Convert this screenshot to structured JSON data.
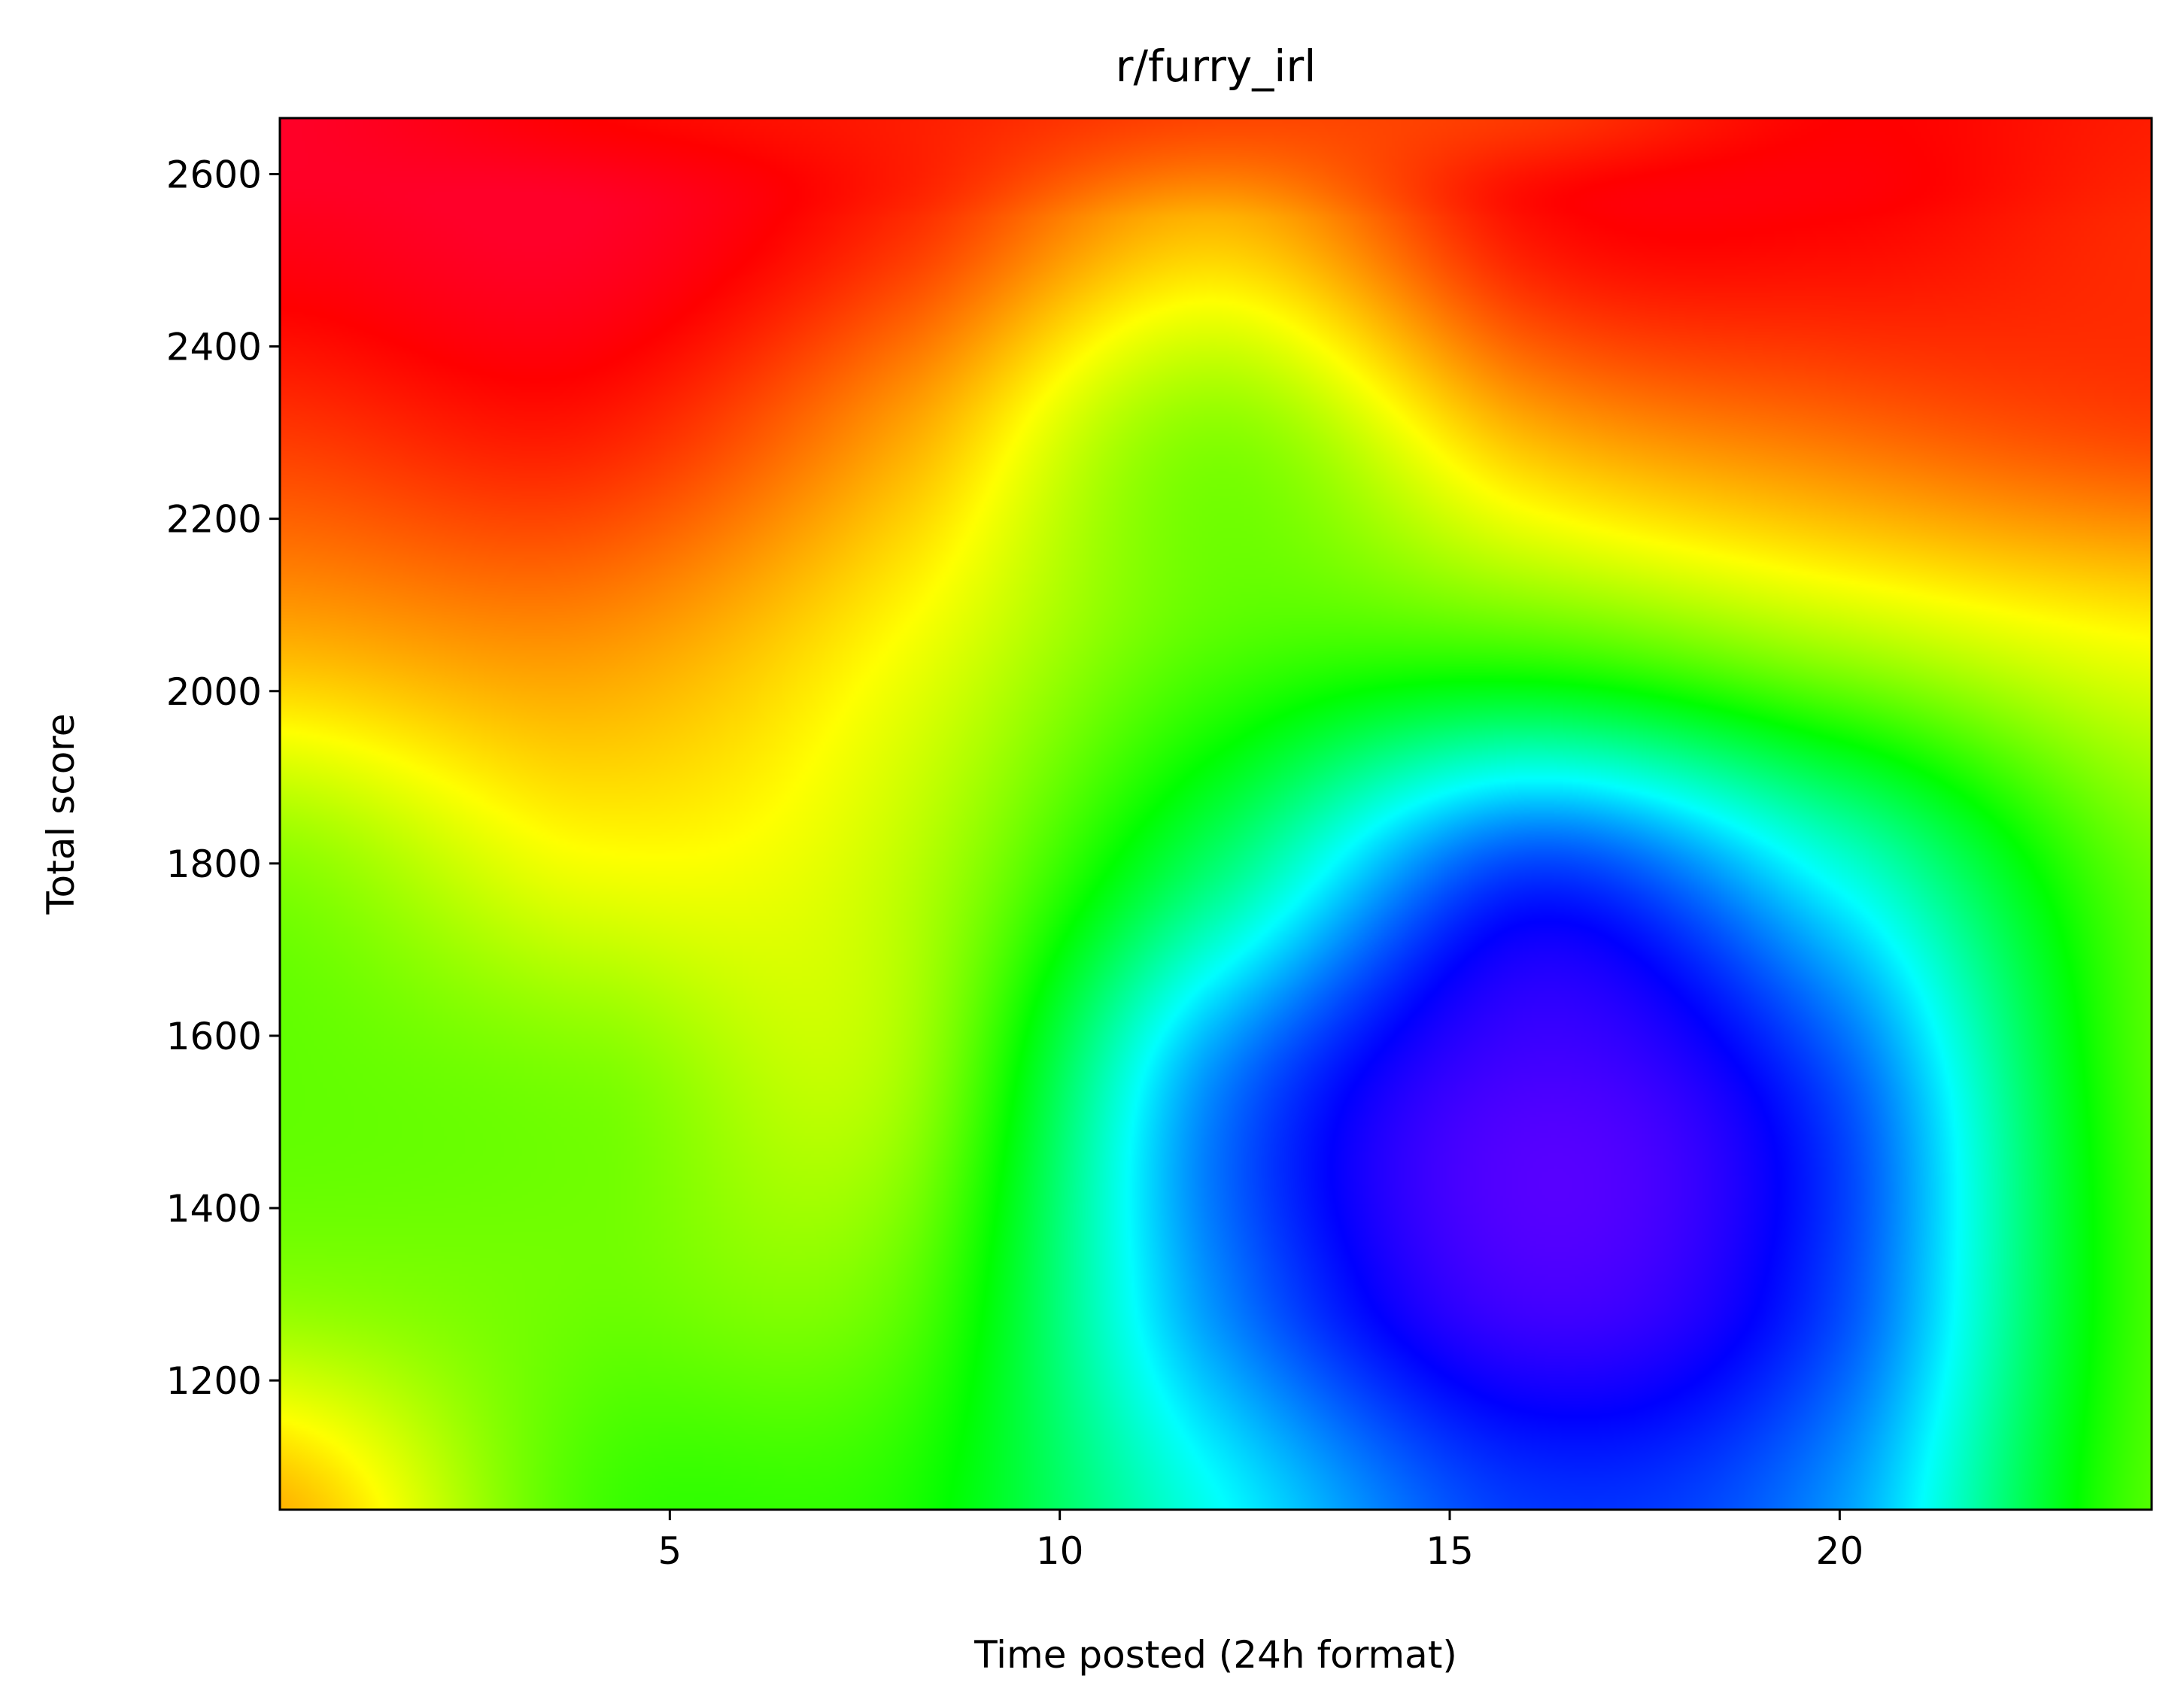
{
  "chart_data": {
    "type": "heatmap",
    "title": "r/furry_irl",
    "xlabel": "Time posted (24h format)",
    "ylabel": "Total score",
    "xlim": [
      0,
      24
    ],
    "ylim": [
      1050,
      2665
    ],
    "x_ticks": [
      5,
      10,
      15,
      20
    ],
    "y_ticks": [
      1200,
      1400,
      1600,
      1800,
      2000,
      2200,
      2400,
      2600
    ],
    "colormap": "gist_rainbow",
    "colorbar": false,
    "grid": false,
    "legend": "none",
    "x_grid": [
      0,
      4,
      8,
      12,
      16,
      20,
      24
    ],
    "y_grid": [
      1050,
      1300,
      1550,
      1800,
      2050,
      2300,
      2550,
      2665
    ],
    "z": [
      [
        0.16,
        0.35,
        0.38,
        0.58,
        0.73,
        0.66,
        0.34
      ],
      [
        0.3,
        0.32,
        0.33,
        0.67,
        0.82,
        0.72,
        0.35
      ],
      [
        0.33,
        0.31,
        0.28,
        0.67,
        0.82,
        0.71,
        0.34
      ],
      [
        0.3,
        0.22,
        0.26,
        0.48,
        0.72,
        0.56,
        0.32
      ],
      [
        0.16,
        0.14,
        0.22,
        0.34,
        0.35,
        0.28,
        0.22
      ],
      [
        0.07,
        0.05,
        0.15,
        0.3,
        0.16,
        0.11,
        0.08
      ],
      [
        0.01,
        0.0,
        0.06,
        0.16,
        0.04,
        0.03,
        0.06
      ],
      [
        0.0,
        0.03,
        0.05,
        0.08,
        0.07,
        0.03,
        0.05
      ]
    ]
  }
}
